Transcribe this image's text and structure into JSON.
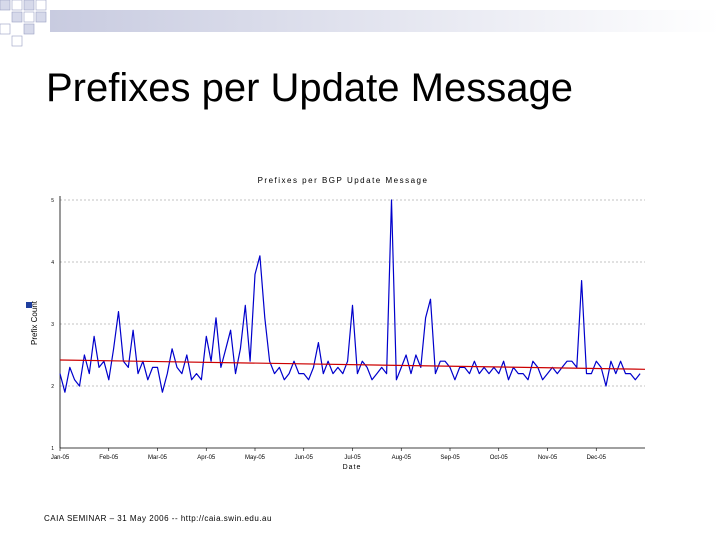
{
  "slide": {
    "title": "Prefixes per Update Message",
    "footer": "CAIA SEMINAR – 31 May 2006 -- http://caia.swin.edu.au"
  },
  "colors": {
    "series": "#0000cc",
    "trend": "#cc0000",
    "gridline": "#888888",
    "bullet": "#1f3f9f",
    "deco_light": "#c8cbe0"
  },
  "chart_data": {
    "type": "line",
    "title": "Prefixes per BGP Update Message",
    "xlabel": "Date",
    "ylabel": "Prefix Count",
    "ylim": [
      1,
      5
    ],
    "xlim": [
      0,
      12
    ],
    "yticks": [
      "1",
      "2",
      "3",
      "4",
      "5"
    ],
    "xticks": [
      "Jan-05",
      "Feb-05",
      "Mar-05",
      "Apr-05",
      "May-05",
      "Jun-05",
      "Jul-05",
      "Aug-05",
      "Sep-05",
      "Oct-05",
      "Nov-05",
      "Dec-05"
    ],
    "grid_y": true,
    "series": [
      {
        "x": [
          0.0,
          0.1,
          0.2,
          0.3,
          0.4,
          0.5,
          0.6,
          0.7,
          0.8,
          0.9,
          1.0,
          1.1,
          1.2,
          1.3,
          1.4,
          1.5,
          1.6,
          1.7,
          1.8,
          1.9,
          2.0,
          2.1,
          2.2,
          2.3,
          2.4,
          2.5,
          2.6,
          2.7,
          2.8,
          2.9,
          3.0,
          3.1,
          3.2,
          3.3,
          3.4,
          3.5,
          3.6,
          3.7,
          3.8,
          3.9,
          4.0,
          4.1,
          4.2,
          4.3,
          4.4,
          4.5,
          4.6,
          4.7,
          4.8,
          4.9,
          5.0,
          5.1,
          5.2,
          5.3,
          5.4,
          5.5,
          5.6,
          5.7,
          5.8,
          5.9,
          6.0,
          6.1,
          6.2,
          6.3,
          6.4,
          6.5,
          6.6,
          6.7,
          6.8,
          6.9,
          7.0,
          7.1,
          7.2,
          7.3,
          7.4,
          7.5,
          7.6,
          7.7,
          7.8,
          7.9,
          8.0,
          8.1,
          8.2,
          8.3,
          8.4,
          8.5,
          8.6,
          8.7,
          8.8,
          8.9,
          9.0,
          9.1,
          9.2,
          9.3,
          9.4,
          9.5,
          9.6,
          9.7,
          9.8,
          9.9,
          10.0,
          10.1,
          10.2,
          10.3,
          10.4,
          10.5,
          10.6,
          10.7,
          10.8,
          10.9,
          11.0,
          11.1,
          11.2,
          11.3,
          11.4,
          11.5,
          11.6,
          11.7,
          11.8,
          11.9
        ],
        "values": [
          2.2,
          1.9,
          2.3,
          2.1,
          2.0,
          2.5,
          2.2,
          2.8,
          2.3,
          2.4,
          2.1,
          2.6,
          3.2,
          2.4,
          2.3,
          2.9,
          2.2,
          2.4,
          2.1,
          2.3,
          2.3,
          1.9,
          2.2,
          2.6,
          2.3,
          2.2,
          2.5,
          2.1,
          2.2,
          2.1,
          2.8,
          2.4,
          3.1,
          2.3,
          2.6,
          2.9,
          2.2,
          2.6,
          3.3,
          2.4,
          3.8,
          4.1,
          3.1,
          2.4,
          2.2,
          2.3,
          2.1,
          2.2,
          2.4,
          2.2,
          2.2,
          2.1,
          2.3,
          2.7,
          2.2,
          2.4,
          2.2,
          2.3,
          2.2,
          2.4,
          3.3,
          2.2,
          2.4,
          2.3,
          2.1,
          2.2,
          2.3,
          2.2,
          5.0,
          2.1,
          2.3,
          2.5,
          2.2,
          2.5,
          2.3,
          3.1,
          3.4,
          2.2,
          2.4,
          2.4,
          2.3,
          2.1,
          2.3,
          2.3,
          2.2,
          2.4,
          2.2,
          2.3,
          2.2,
          2.3,
          2.2,
          2.4,
          2.1,
          2.3,
          2.2,
          2.2,
          2.1,
          2.4,
          2.3,
          2.1,
          2.2,
          2.3,
          2.2,
          2.3,
          2.4,
          2.4,
          2.3,
          3.7,
          2.2,
          2.2,
          2.4,
          2.3,
          2.0,
          2.4,
          2.2,
          2.4,
          2.2,
          2.2,
          2.1,
          2.2
        ]
      },
      {
        "x": [
          0,
          12
        ],
        "values": [
          2.42,
          2.27
        ]
      }
    ]
  }
}
